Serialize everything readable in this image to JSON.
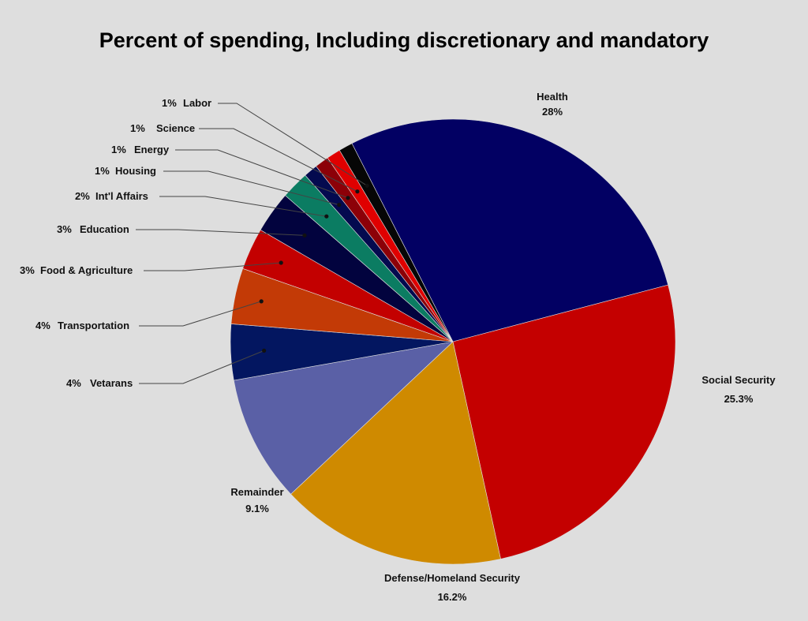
{
  "chart_data": {
    "type": "pie",
    "title": "Percent of spending, Including discretionary and mandatory",
    "slices": [
      {
        "label": "Health",
        "value": 28,
        "display": "28%",
        "color": "#020063"
      },
      {
        "label": "Social Security",
        "value": 25.3,
        "display": "25.3%",
        "color": "#c40000"
      },
      {
        "label": "Defense/Homeland Security",
        "value": 16.2,
        "display": "16.2%",
        "color": "#cf8a00"
      },
      {
        "label": "Remainder",
        "value": 9.1,
        "display": "9.1%",
        "color": "#5a60a6"
      },
      {
        "label": "Vetarans",
        "value": 4,
        "display": "4%",
        "color": "#031660"
      },
      {
        "label": "Transportation",
        "value": 4,
        "display": "4%",
        "color": "#c33a06"
      },
      {
        "label": "Food & Agriculture",
        "value": 3,
        "display": "3%",
        "color": "#c30000"
      },
      {
        "label": "Education",
        "value": 3,
        "display": "3%",
        "color": "#02033e"
      },
      {
        "label": "Int'l Affairs",
        "value": 2,
        "display": "2%",
        "color": "#0b7c62"
      },
      {
        "label": "Housing",
        "value": 1,
        "display": "1%",
        "color": "#040a4f"
      },
      {
        "label": "Energy",
        "value": 1,
        "display": "1%",
        "color": "#8c0008"
      },
      {
        "label": "Science",
        "value": 1,
        "display": "1%",
        "color": "#e00000"
      },
      {
        "label": "Labor",
        "value": 1,
        "display": "1%",
        "color": "#060606"
      }
    ]
  }
}
